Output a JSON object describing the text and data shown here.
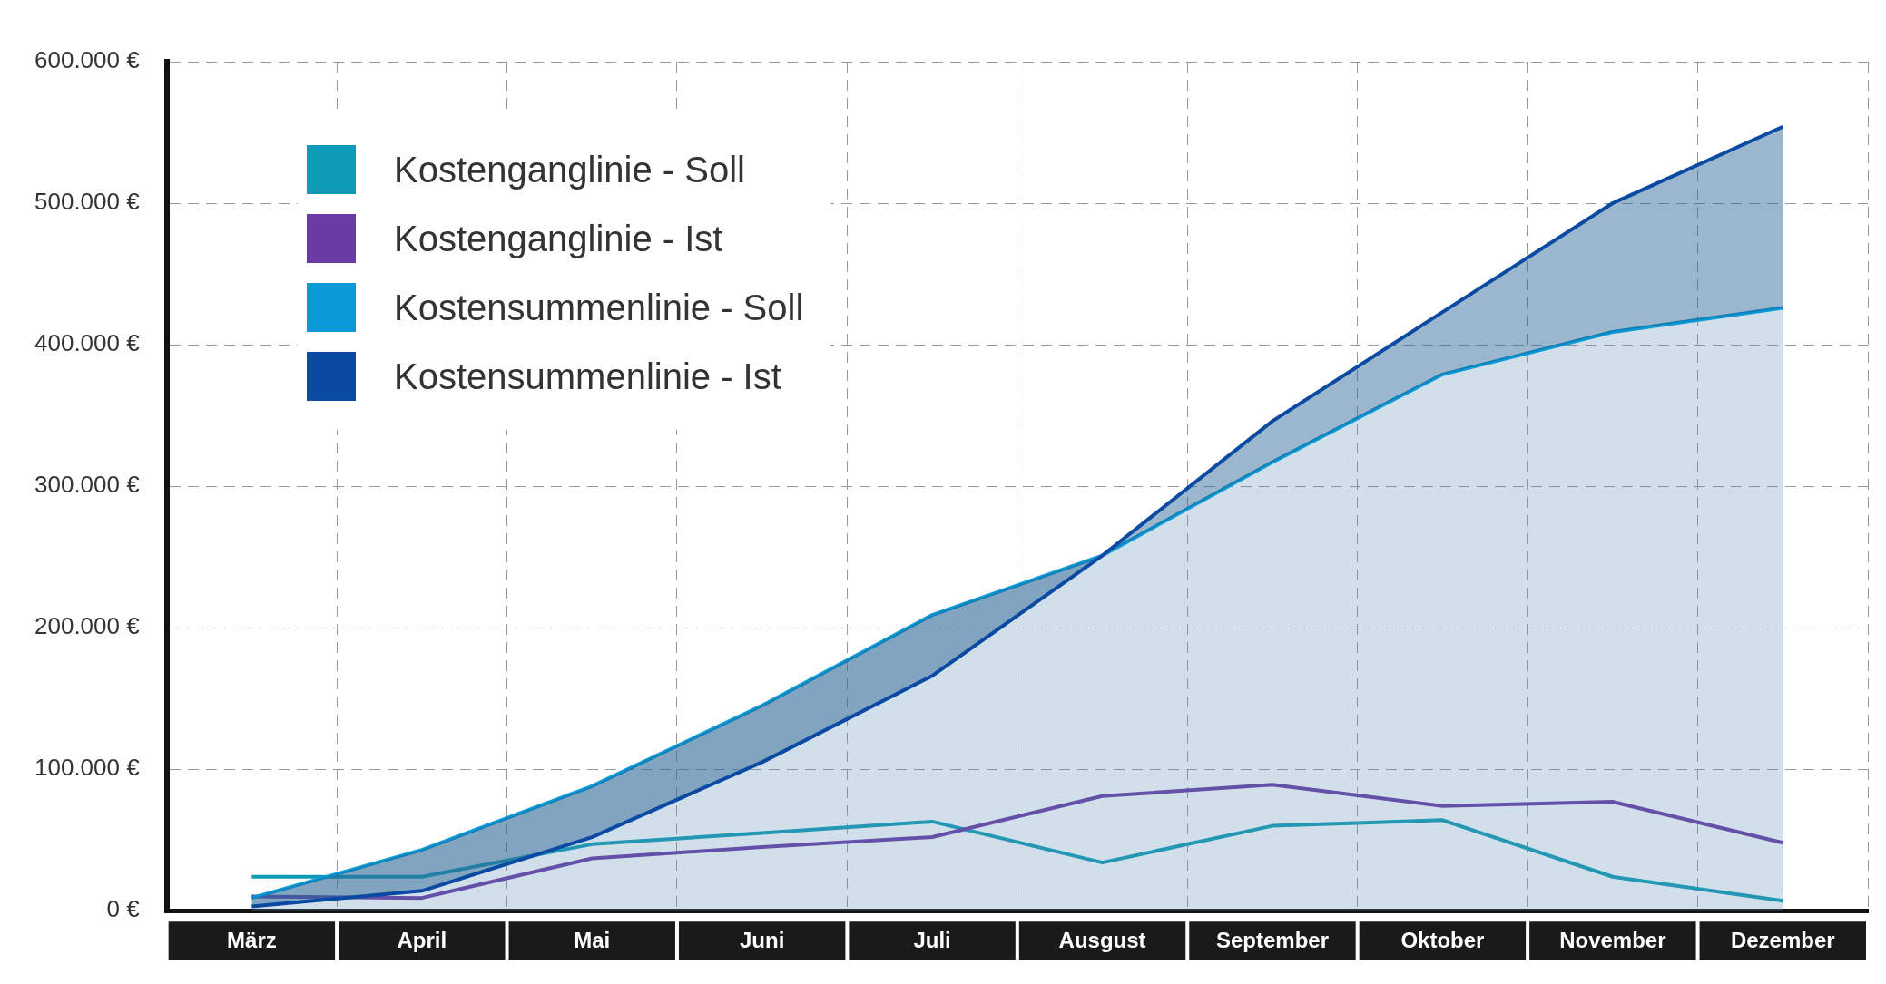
{
  "chart_data": {
    "type": "line",
    "categories": [
      "März",
      "April",
      "Mai",
      "Juni",
      "Juli",
      "Ausgust",
      "September",
      "Oktober",
      "November",
      "Dezember"
    ],
    "series": [
      {
        "name": "Kostenganglinie - Soll",
        "color": "#0e9bb5",
        "values": [
          24000,
          24000,
          47000,
          55000,
          63000,
          34000,
          60000,
          64000,
          24000,
          7000
        ]
      },
      {
        "name": "Kostenganglinie - Ist",
        "color": "#6a3aa5",
        "values": [
          10000,
          9000,
          37000,
          45000,
          52000,
          81000,
          89000,
          74000,
          77000,
          48000
        ]
      },
      {
        "name": "Kostensummenlinie - Soll",
        "type": "area",
        "color": "#0a9ad8",
        "values": [
          9000,
          43000,
          88000,
          145000,
          209000,
          251000,
          317000,
          379000,
          409000,
          426000
        ]
      },
      {
        "name": "Kostensummenlinie - Ist",
        "type": "area",
        "color": "#0b4aa2",
        "values": [
          3000,
          14000,
          52000,
          105000,
          166000,
          251000,
          346000,
          423000,
          500000,
          554000
        ]
      }
    ],
    "ylim": [
      0,
      600000
    ],
    "yticks": [
      {
        "value": 0,
        "label": "0 €"
      },
      {
        "value": 100000,
        "label": "100.000 €"
      },
      {
        "value": 200000,
        "label": "200.000 €"
      },
      {
        "value": 300000,
        "label": "300.000 €"
      },
      {
        "value": 400000,
        "label": "400.000 €"
      },
      {
        "value": 500000,
        "label": "500.000 €"
      },
      {
        "value": 600000,
        "label": "600.000 €"
      }
    ],
    "grid": true,
    "legend": "top left",
    "marker": "none",
    "line_style": "solid"
  }
}
